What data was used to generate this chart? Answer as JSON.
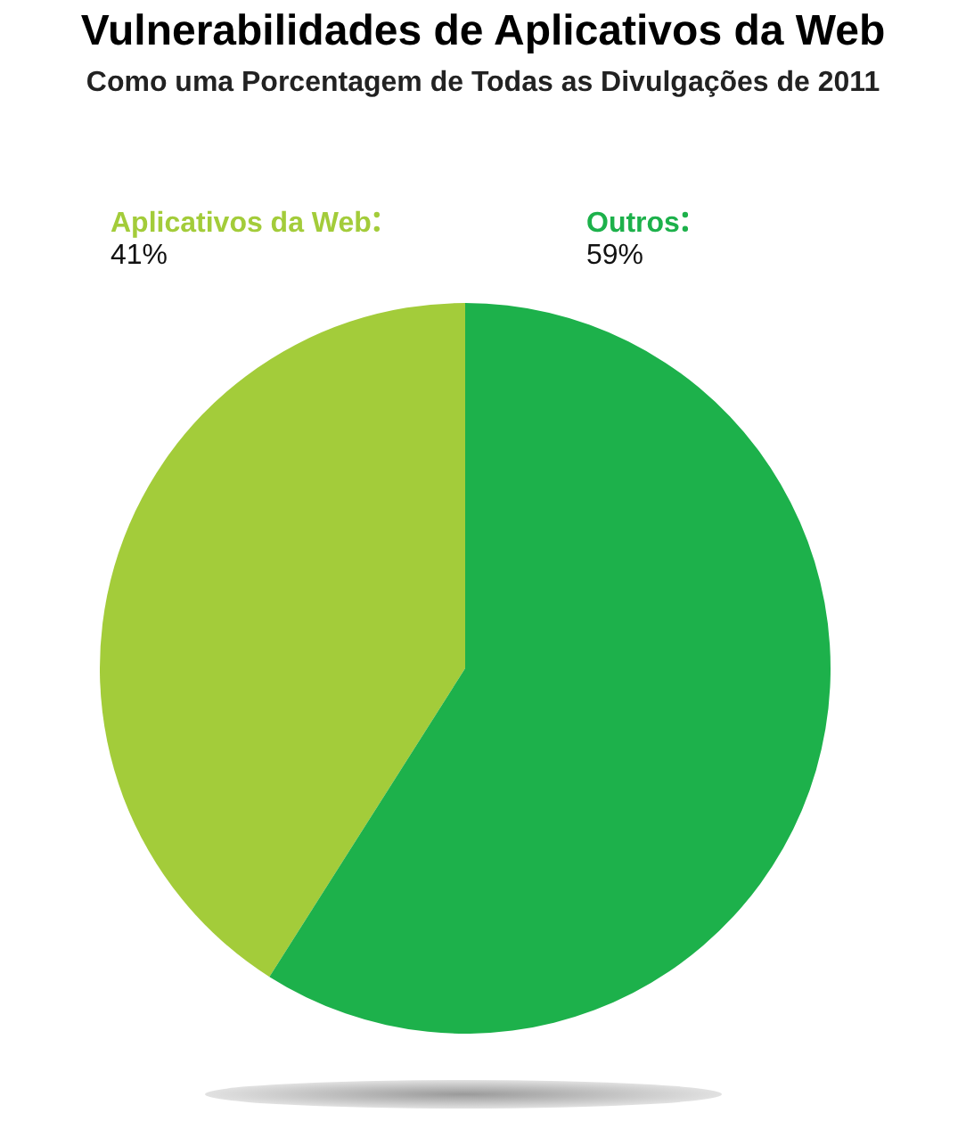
{
  "chart_data": {
    "type": "pie",
    "title": "Vulnerabilidades de Aplicativos da Web",
    "subtitle": "Como uma Porcentagem de Todas as Divulgações de 2011",
    "categories": [
      "Aplicativos da Web",
      "Outros"
    ],
    "values": [
      41,
      59
    ],
    "colors": [
      "#a3cc3a",
      "#1db14b"
    ],
    "value_labels": [
      "41%",
      "59%"
    ],
    "legend": "top"
  }
}
